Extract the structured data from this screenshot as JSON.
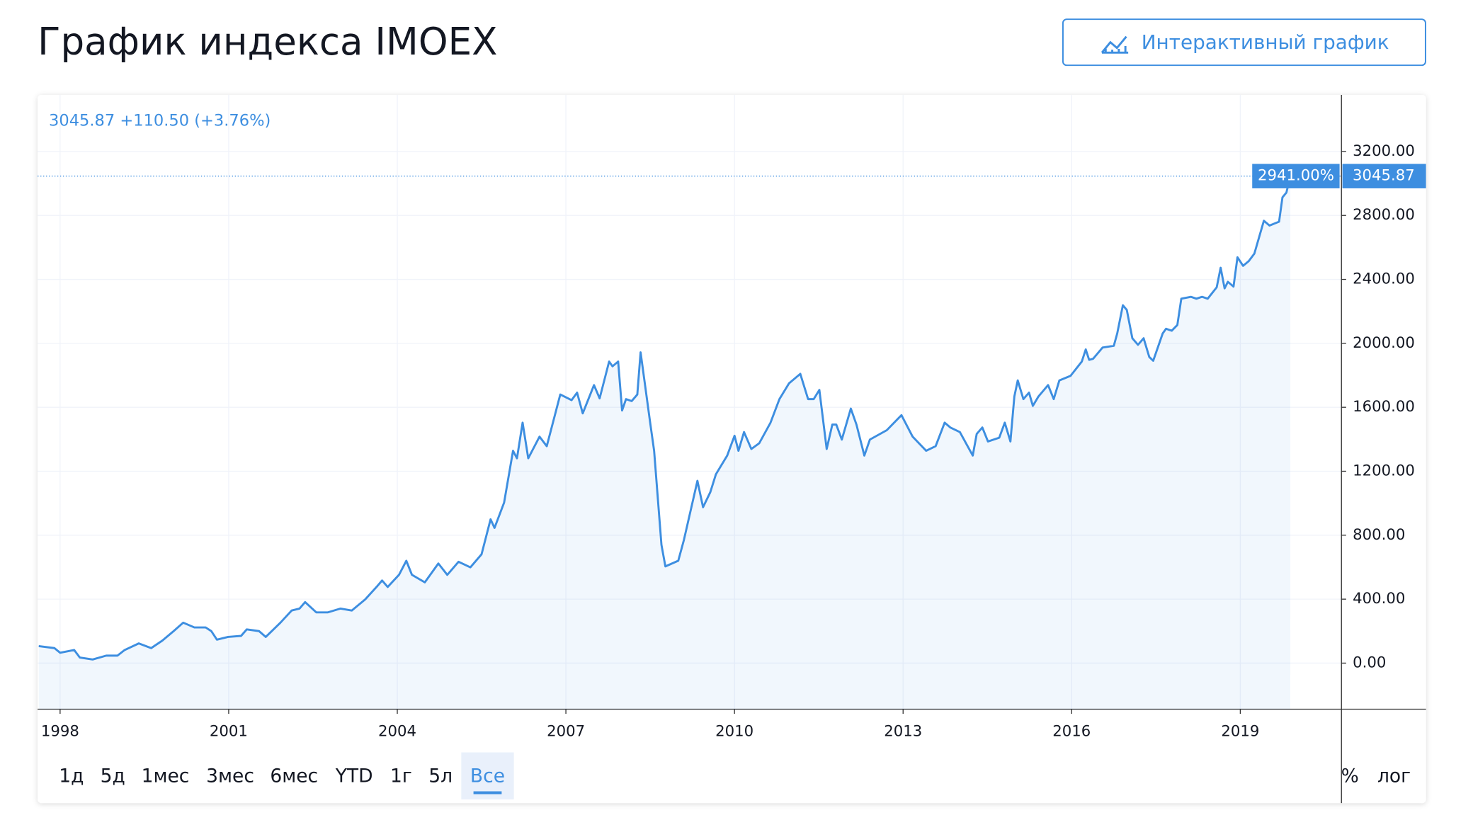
{
  "header": {
    "title": "График индекса IMOEX",
    "button": "Интерактивный график"
  },
  "chart_data": {
    "type": "line",
    "legend_text": "3045.87 +110.50 (+3.76%)",
    "percent_label": "2941.00%",
    "price_label": "3045.87",
    "xlim": [
      1997.6,
      2020.8
    ],
    "ylim": [
      -288,
      3554
    ],
    "xticks": [
      1998,
      2001,
      2004,
      2007,
      2010,
      2013,
      2016,
      2019
    ],
    "yticks": [
      {
        "value": 0,
        "label": "0.00"
      },
      {
        "value": 400,
        "label": "400.00"
      },
      {
        "value": 800,
        "label": "800.00"
      },
      {
        "value": 1200,
        "label": "1200.00"
      },
      {
        "value": 1600,
        "label": "1600.00"
      },
      {
        "value": 2000,
        "label": "2000.00"
      },
      {
        "value": 2400,
        "label": "2400.00"
      },
      {
        "value": 2800,
        "label": "2800.00"
      },
      {
        "value": 3200,
        "label": "3200.00"
      }
    ],
    "grid": true,
    "x": [
      1997.62,
      1997.9,
      1998.0,
      1998.25,
      1998.35,
      1998.58,
      1998.82,
      1999.02,
      1999.15,
      1999.4,
      1999.62,
      1999.82,
      2000.02,
      2000.19,
      2000.39,
      2000.59,
      2000.69,
      2000.79,
      2000.99,
      2001.22,
      2001.32,
      2001.54,
      2001.66,
      2001.92,
      2002.12,
      2002.26,
      2002.36,
      2002.56,
      2002.76,
      2002.99,
      2003.19,
      2003.43,
      2003.63,
      2003.73,
      2003.83,
      2004.03,
      2004.16,
      2004.26,
      2004.49,
      2004.73,
      2004.89,
      2005.09,
      2005.3,
      2005.5,
      2005.66,
      2005.73,
      2005.9,
      2006.06,
      2006.13,
      2006.23,
      2006.33,
      2006.53,
      2006.66,
      2006.9,
      2007.1,
      2007.2,
      2007.3,
      2007.5,
      2007.6,
      2007.77,
      2007.83,
      2007.93,
      2008.0,
      2008.07,
      2008.17,
      2008.27,
      2008.33,
      2008.5,
      2008.57,
      2008.7,
      2008.77,
      2009.0,
      2009.1,
      2009.34,
      2009.44,
      2009.57,
      2009.67,
      2009.87,
      2010.0,
      2010.07,
      2010.17,
      2010.3,
      2010.44,
      2010.64,
      2010.8,
      2010.97,
      2011.17,
      2011.31,
      2011.41,
      2011.51,
      2011.64,
      2011.74,
      2011.81,
      2011.91,
      2012.07,
      2012.17,
      2012.31,
      2012.41,
      2012.71,
      2012.97,
      2013.17,
      2013.41,
      2013.58,
      2013.74,
      2013.84,
      2014.01,
      2014.24,
      2014.31,
      2014.41,
      2014.51,
      2014.71,
      2014.81,
      2014.91,
      2014.98,
      2015.04,
      2015.14,
      2015.24,
      2015.31,
      2015.41,
      2015.58,
      2015.68,
      2015.78,
      2015.98,
      2016.18,
      2016.25,
      2016.31,
      2016.38,
      2016.55,
      2016.75,
      2016.81,
      2016.91,
      2016.98,
      2017.08,
      2017.18,
      2017.28,
      2017.38,
      2017.45,
      2017.62,
      2017.68,
      2017.78,
      2017.88,
      2017.95,
      2018.12,
      2018.22,
      2018.32,
      2018.42,
      2018.58,
      2018.65,
      2018.72,
      2018.78,
      2018.88,
      2018.95,
      2019.05,
      2019.15,
      2019.25,
      2019.42,
      2019.52,
      2019.69,
      2019.75,
      2019.82,
      2019.89
    ],
    "series": [
      {
        "name": "IMOEX",
        "color": "#3d8ee0",
        "values": [
          106,
          94,
          65,
          82,
          35,
          23,
          47,
          47,
          82,
          123,
          94,
          141,
          200,
          253,
          223,
          223,
          200,
          147,
          164,
          170,
          211,
          200,
          164,
          253,
          329,
          341,
          382,
          317,
          317,
          341,
          329,
          399,
          476,
          517,
          476,
          552,
          640,
          552,
          505,
          623,
          552,
          634,
          599,
          681,
          899,
          846,
          1004,
          1328,
          1281,
          1504,
          1281,
          1416,
          1357,
          1680,
          1645,
          1692,
          1562,
          1739,
          1656,
          1886,
          1856,
          1886,
          1580,
          1651,
          1639,
          1680,
          1944,
          1504,
          1328,
          740,
          605,
          640,
          770,
          1140,
          975,
          1069,
          1181,
          1298,
          1422,
          1328,
          1445,
          1339,
          1375,
          1504,
          1651,
          1750,
          1809,
          1651,
          1651,
          1709,
          1339,
          1492,
          1492,
          1398,
          1592,
          1492,
          1298,
          1398,
          1457,
          1551,
          1416,
          1328,
          1357,
          1504,
          1474,
          1445,
          1298,
          1433,
          1474,
          1386,
          1410,
          1504,
          1386,
          1668,
          1768,
          1651,
          1692,
          1609,
          1668,
          1739,
          1651,
          1768,
          1797,
          1886,
          1962,
          1897,
          1903,
          1974,
          1985,
          2062,
          2238,
          2209,
          2032,
          1991,
          2032,
          1915,
          1891,
          2062,
          2091,
          2079,
          2115,
          2279,
          2291,
          2279,
          2291,
          2279,
          2350,
          2473,
          2344,
          2385,
          2355,
          2538,
          2485,
          2514,
          2561,
          2767,
          2737,
          2761,
          2913,
          2943,
          3045.87
        ]
      }
    ]
  },
  "toolbar": {
    "ranges": [
      "1д",
      "5д",
      "1мес",
      "3мес",
      "6мес",
      "YTD",
      "1г",
      "5л",
      "Все"
    ],
    "active_range": 8,
    "options": [
      "%",
      "лог"
    ]
  }
}
